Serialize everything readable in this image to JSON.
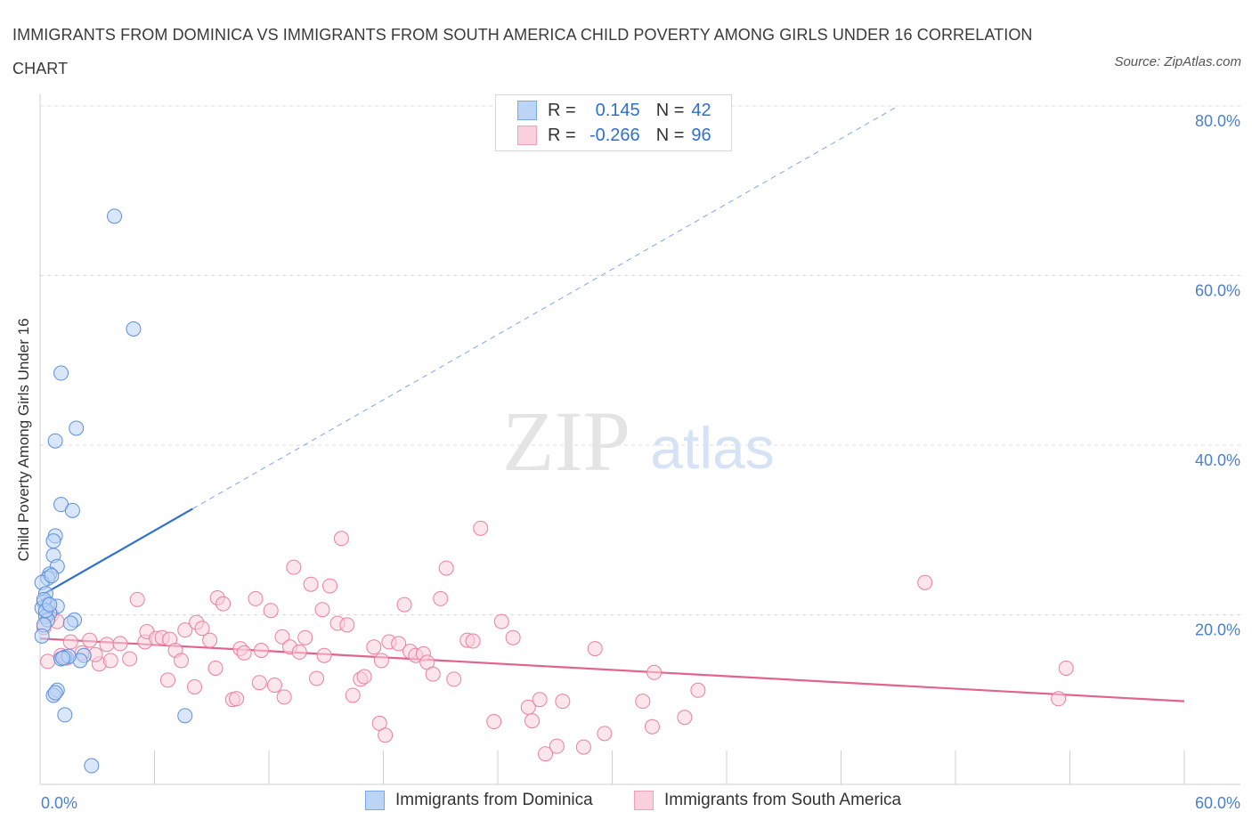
{
  "header": {
    "title": "IMMIGRANTS FROM DOMINICA VS IMMIGRANTS FROM SOUTH AMERICA CHILD POVERTY AMONG GIRLS UNDER 16 CORRELATION CHART",
    "source": "Source: ZipAtlas.com"
  },
  "watermark": {
    "zip": "ZIP",
    "atlas": "atlas"
  },
  "legend": {
    "rows": [
      {
        "r_label": "R =",
        "r_value": "0.145",
        "n_label": "N =",
        "n_value": "42",
        "color": "#7aa7e6",
        "fill": "#bcd4f5"
      },
      {
        "r_label": "R =",
        "r_value": "-0.266",
        "n_label": "N =",
        "n_value": "96",
        "color": "#f0a0bb",
        "fill": "#fbd0dd"
      }
    ]
  },
  "chart_data": {
    "type": "scatter",
    "title": "IMMIGRANTS FROM DOMINICA VS IMMIGRANTS FROM SOUTH AMERICA CHILD POVERTY AMONG GIRLS UNDER 16 CORRELATION CHART",
    "xlabel": "",
    "ylabel": "Child Poverty Among Girls Under 16",
    "xlim": [
      0,
      60
    ],
    "ylim": [
      0,
      80
    ],
    "x_tick_labels": [
      "0.0%",
      "60.0%"
    ],
    "y_tick_labels": [
      "20.0%",
      "40.0%",
      "60.0%",
      "80.0%"
    ],
    "y_ticks": [
      20,
      40,
      60,
      80
    ],
    "grid": true,
    "legend_position": "top-center",
    "series": [
      {
        "name": "Immigrants from Dominica",
        "color": "#5b8fd9",
        "fill": "#bcd4f5",
        "trend": {
          "x": [
            0,
            8
          ],
          "y": [
            22.2,
            32.5
          ],
          "extended_to": [
            45,
            80
          ],
          "color": "#2f6fd1"
        },
        "points": [
          [
            3.9,
            67
          ],
          [
            4.9,
            53.7
          ],
          [
            1.1,
            48.5
          ],
          [
            1.9,
            42
          ],
          [
            0.8,
            40.5
          ],
          [
            1.1,
            33
          ],
          [
            1.7,
            32.3
          ],
          [
            0.8,
            29.3
          ],
          [
            0.7,
            28.7
          ],
          [
            0.7,
            27
          ],
          [
            0.9,
            25.7
          ],
          [
            0.5,
            24.8
          ],
          [
            0.4,
            24.3
          ],
          [
            0.1,
            23.8
          ],
          [
            0.3,
            22.5
          ],
          [
            0.2,
            21.5
          ],
          [
            0.4,
            21.2
          ],
          [
            0.9,
            21
          ],
          [
            0.1,
            20.8
          ],
          [
            0.5,
            20.2
          ],
          [
            0.3,
            19.8
          ],
          [
            1.8,
            19.4
          ],
          [
            1.6,
            19
          ],
          [
            0.4,
            19.4
          ],
          [
            0.2,
            18.8
          ],
          [
            0.1,
            17.5
          ],
          [
            2.3,
            15.2
          ],
          [
            1.3,
            15
          ],
          [
            1.1,
            14.8
          ],
          [
            2.1,
            14.6
          ],
          [
            0.9,
            11.1
          ],
          [
            0.7,
            10.5
          ],
          [
            1.3,
            8.2
          ],
          [
            7.6,
            8.1
          ],
          [
            2.7,
            2.2
          ],
          [
            0.2,
            21.8
          ],
          [
            0.6,
            24.6
          ],
          [
            1.5,
            15.1
          ],
          [
            0.3,
            20.5
          ],
          [
            1.2,
            14.9
          ],
          [
            0.8,
            10.8
          ],
          [
            0.5,
            21.2
          ]
        ]
      },
      {
        "name": "Immigrants from South America",
        "color": "#e8809f",
        "fill": "#fbd0dd",
        "trend": {
          "x": [
            0,
            60
          ],
          "y": [
            17.2,
            9.8
          ],
          "color": "#e0648d"
        },
        "points": [
          [
            0.2,
            18.5
          ],
          [
            0.6,
            20
          ],
          [
            1.1,
            15.2
          ],
          [
            1.6,
            16.8
          ],
          [
            2.2,
            15.5
          ],
          [
            2.6,
            17
          ],
          [
            3.1,
            14.2
          ],
          [
            3.5,
            16.5
          ],
          [
            3.7,
            14.6
          ],
          [
            4.2,
            16.6
          ],
          [
            4.7,
            14.8
          ],
          [
            5.1,
            21.8
          ],
          [
            5.5,
            16.8
          ],
          [
            5.6,
            18
          ],
          [
            6.1,
            17.2
          ],
          [
            6.4,
            17.3
          ],
          [
            6.7,
            12.3
          ],
          [
            6.8,
            17.1
          ],
          [
            7.1,
            15.8
          ],
          [
            7.4,
            14.6
          ],
          [
            7.6,
            18.2
          ],
          [
            8.1,
            11.5
          ],
          [
            8.2,
            19.1
          ],
          [
            8.5,
            18.4
          ],
          [
            8.9,
            17
          ],
          [
            9.2,
            13.7
          ],
          [
            9.3,
            22
          ],
          [
            9.6,
            21.3
          ],
          [
            10.1,
            10
          ],
          [
            10.3,
            10.1
          ],
          [
            10.5,
            16
          ],
          [
            10.7,
            15.5
          ],
          [
            11.3,
            21.9
          ],
          [
            11.5,
            12
          ],
          [
            11.6,
            15.8
          ],
          [
            12.1,
            20.5
          ],
          [
            12.3,
            11.7
          ],
          [
            12.7,
            17.4
          ],
          [
            12.8,
            10.3
          ],
          [
            13.1,
            16.2
          ],
          [
            13.3,
            25.6
          ],
          [
            13.6,
            15.6
          ],
          [
            13.9,
            17.3
          ],
          [
            14.2,
            23.6
          ],
          [
            14.5,
            12.5
          ],
          [
            14.8,
            20.6
          ],
          [
            14.9,
            15.2
          ],
          [
            15.2,
            23.4
          ],
          [
            15.6,
            19
          ],
          [
            15.8,
            29
          ],
          [
            16.1,
            18.8
          ],
          [
            16.4,
            10.5
          ],
          [
            16.8,
            12.4
          ],
          [
            17,
            12.7
          ],
          [
            17.5,
            16.2
          ],
          [
            17.8,
            7.2
          ],
          [
            17.9,
            14.6
          ],
          [
            18.1,
            5.8
          ],
          [
            18.3,
            16.8
          ],
          [
            18.8,
            16.6
          ],
          [
            19.1,
            21.2
          ],
          [
            19.4,
            15.7
          ],
          [
            19.7,
            15.2
          ],
          [
            20.1,
            15.4
          ],
          [
            20.3,
            14.4
          ],
          [
            20.6,
            13
          ],
          [
            21,
            21.9
          ],
          [
            21.3,
            25.5
          ],
          [
            21.7,
            12.4
          ],
          [
            22.4,
            17
          ],
          [
            22.7,
            16.9
          ],
          [
            23.1,
            30.2
          ],
          [
            23.8,
            7.4
          ],
          [
            24.2,
            19.2
          ],
          [
            24.8,
            17.3
          ],
          [
            25.6,
            9.1
          ],
          [
            25.8,
            7.5
          ],
          [
            26.2,
            10
          ],
          [
            26.5,
            3.6
          ],
          [
            27.1,
            4.5
          ],
          [
            27.4,
            9.8
          ],
          [
            28.5,
            4.4
          ],
          [
            29.1,
            16
          ],
          [
            29.6,
            6
          ],
          [
            31.6,
            9.8
          ],
          [
            32.1,
            6.8
          ],
          [
            32.2,
            13.2
          ],
          [
            33.8,
            7.9
          ],
          [
            34.5,
            11.1
          ],
          [
            46.4,
            23.8
          ],
          [
            53.4,
            10.1
          ],
          [
            53.8,
            13.7
          ],
          [
            0.4,
            14.5
          ],
          [
            1.4,
            14.9
          ],
          [
            2.9,
            15.3
          ],
          [
            0.9,
            19.2
          ]
        ]
      }
    ]
  },
  "bottom_legend": {
    "items": [
      {
        "label": "Immigrants from Dominica",
        "color": "#7aa7e6",
        "fill": "#bcd4f5"
      },
      {
        "label": "Immigrants from South America",
        "color": "#f0a0bb",
        "fill": "#fbd0dd"
      }
    ]
  }
}
